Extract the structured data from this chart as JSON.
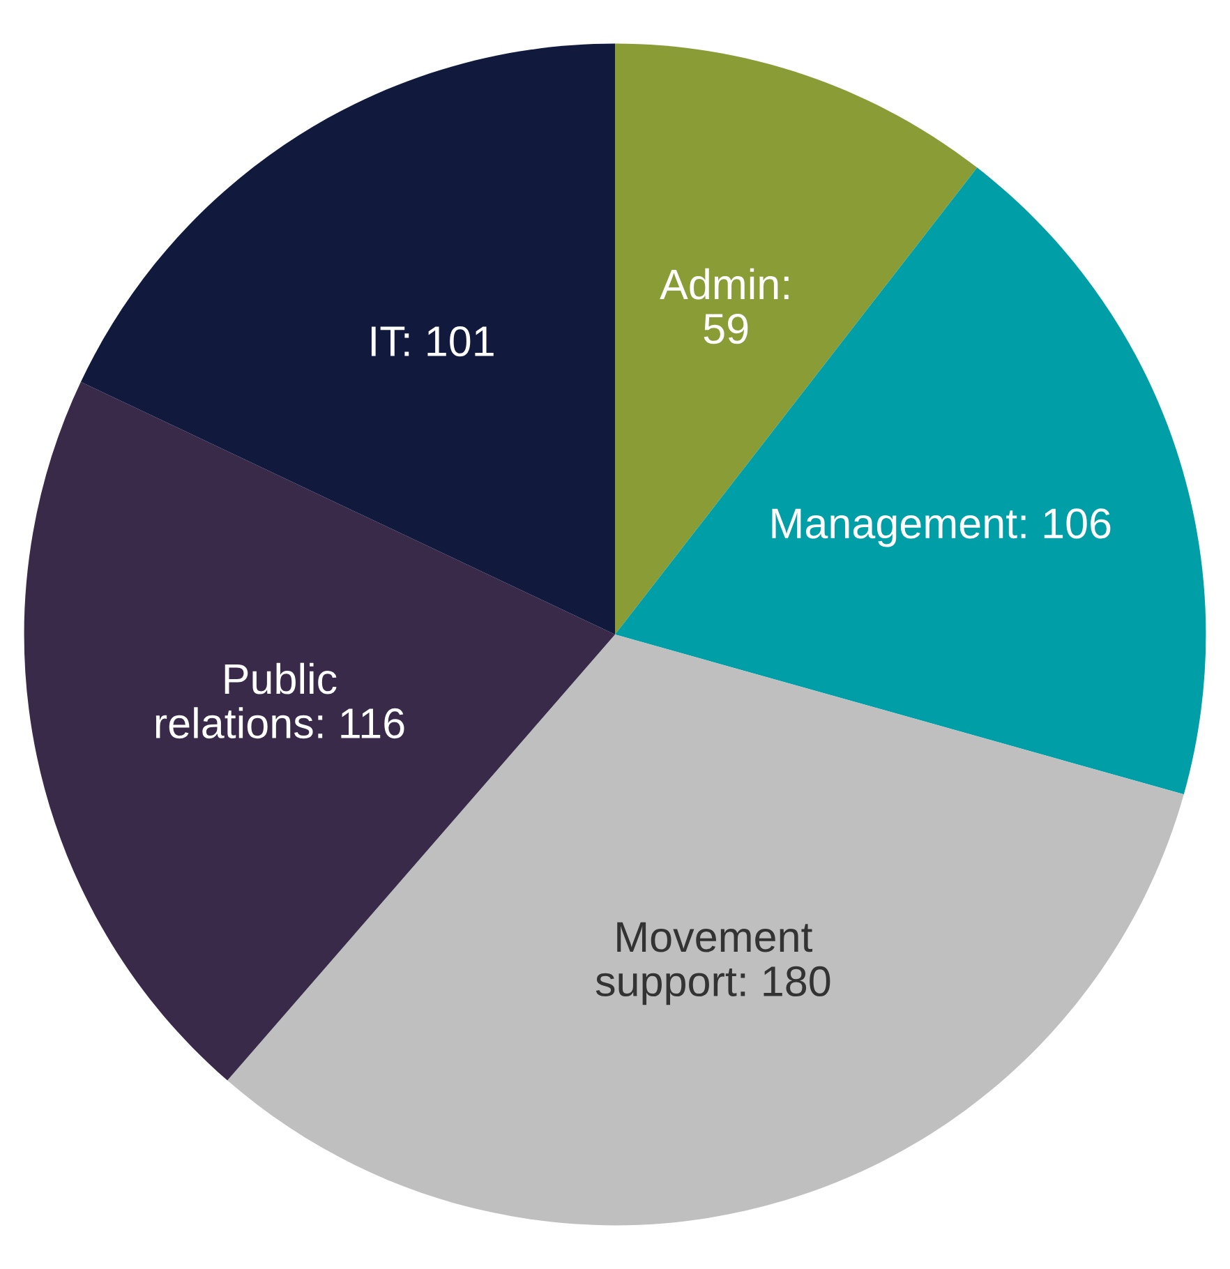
{
  "chart_data": {
    "type": "pie",
    "categories": [
      "Admin:\n59",
      "Management: 106",
      "Movement\nsupport: 180",
      "Public\nrelations: 116",
      "IT: 101"
    ],
    "values": [
      59,
      106,
      180,
      116,
      101
    ],
    "colors": [
      "#8a9c35",
      "#009ea6",
      "#bfbfbf",
      "#3a2a4a",
      "#111a3c"
    ],
    "legend": false
  }
}
